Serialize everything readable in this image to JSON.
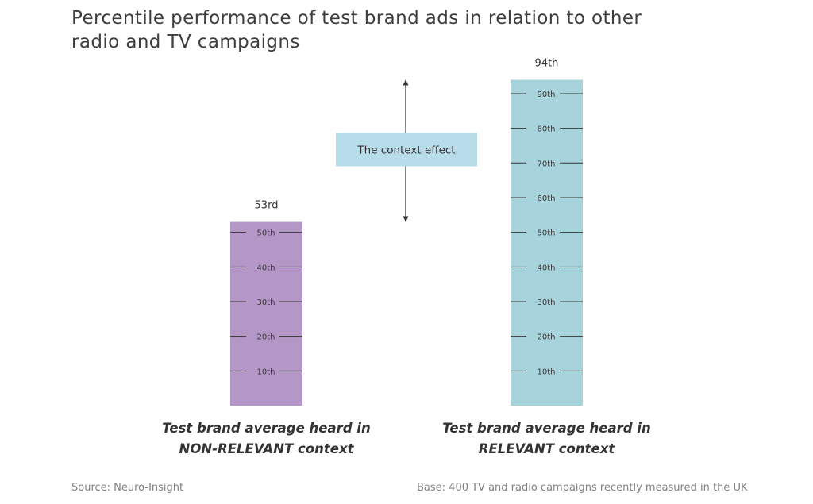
{
  "title": "Percentile performance of test brand ads in relation to other radio and TV campaigns",
  "chart_data": {
    "type": "bar",
    "categories": [
      [
        "Test brand average heard in",
        "NON-RELEVANT context"
      ],
      [
        "Test brand average heard in",
        "RELEVANT context"
      ]
    ],
    "values": [
      53,
      94
    ],
    "value_labels": [
      "53rd",
      "94th"
    ],
    "tick_values": [
      10,
      20,
      30,
      40,
      50,
      60,
      70,
      80,
      90
    ],
    "tick_labels": [
      "10th",
      "20th",
      "30th",
      "40th",
      "50th",
      "60th",
      "70th",
      "80th",
      "90th"
    ],
    "ylim": [
      0,
      100
    ],
    "colors": [
      "#b497c7",
      "#a7d4dc"
    ],
    "annotation": {
      "text": "The context effect",
      "from": 53,
      "to": 94,
      "box_color": "#b7dcea"
    }
  },
  "footer": {
    "source": "Source: Neuro-Insight",
    "base": "Base: 400 TV and radio campaigns recently measured in the UK"
  }
}
